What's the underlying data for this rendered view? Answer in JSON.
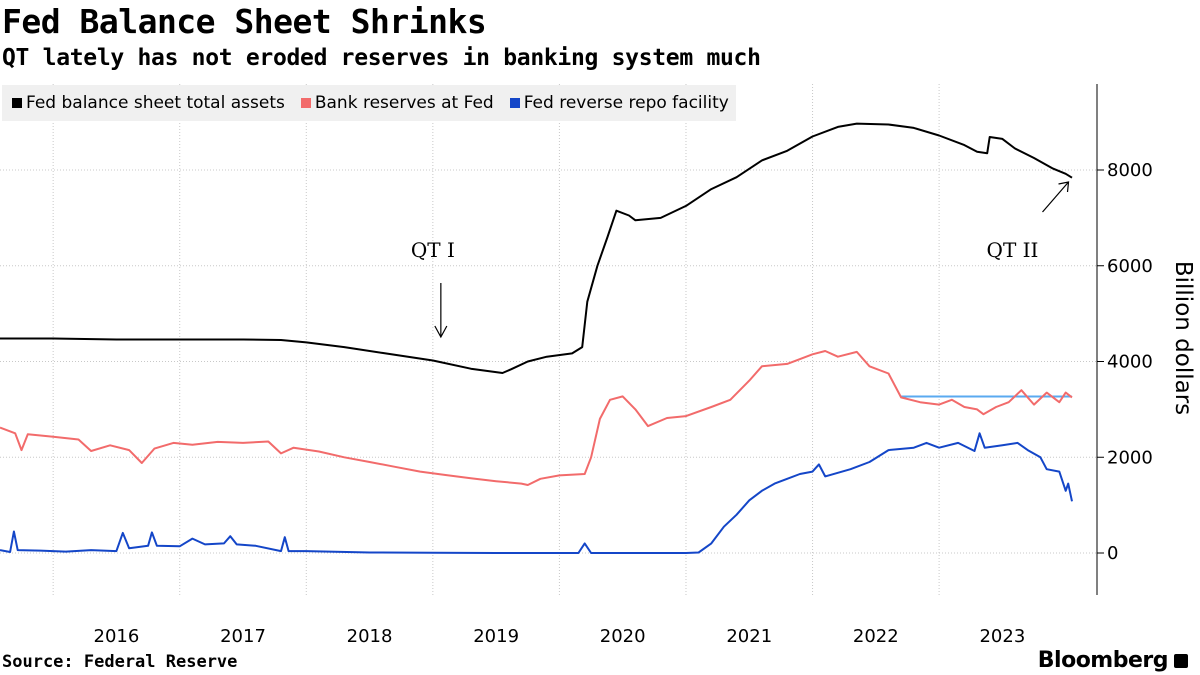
{
  "header": {
    "title": "Fed Balance Sheet Shrinks",
    "subtitle": "QT lately has not eroded reserves in banking system much"
  },
  "footer": {
    "source": "Source: Federal Reserve",
    "brand": "Bloomberg"
  },
  "colors": {
    "total_assets": "#000000",
    "reserves": "#f26b6b",
    "reverse_repo": "#1446c8",
    "reference_line": "#5aaaf0"
  },
  "chart_data": {
    "type": "line",
    "title": "Fed Balance Sheet Shrinks",
    "subtitle": "QT lately has not eroded reserves in banking system much",
    "ylabel": "Billion dollars",
    "xlabel": "",
    "ylim": [
      -900,
      9800
    ],
    "xlim": [
      2015.58,
      2023.9
    ],
    "yticks": [
      0,
      2000,
      4000,
      6000,
      8000
    ],
    "xticks": [
      "2016",
      "2017",
      "2018",
      "2019",
      "2020",
      "2021",
      "2022",
      "2023"
    ],
    "grid": true,
    "legend_position": "top-left",
    "series": [
      {
        "name": "Fed balance sheet total assets",
        "color": "#000000",
        "points": [
          [
            2015.58,
            4480
          ],
          [
            2016.0,
            4480
          ],
          [
            2016.5,
            4460
          ],
          [
            2017.0,
            4460
          ],
          [
            2017.5,
            4460
          ],
          [
            2017.8,
            4450
          ],
          [
            2018.0,
            4400
          ],
          [
            2018.3,
            4300
          ],
          [
            2018.6,
            4180
          ],
          [
            2019.0,
            4020
          ],
          [
            2019.3,
            3850
          ],
          [
            2019.55,
            3760
          ],
          [
            2019.62,
            3840
          ],
          [
            2019.75,
            4000
          ],
          [
            2019.9,
            4100
          ],
          [
            2020.1,
            4170
          ],
          [
            2020.18,
            4300
          ],
          [
            2020.22,
            5250
          ],
          [
            2020.3,
            6000
          ],
          [
            2020.38,
            6600
          ],
          [
            2020.45,
            7150
          ],
          [
            2020.55,
            7050
          ],
          [
            2020.6,
            6950
          ],
          [
            2020.8,
            7000
          ],
          [
            2021.0,
            7250
          ],
          [
            2021.2,
            7600
          ],
          [
            2021.4,
            7850
          ],
          [
            2021.6,
            8200
          ],
          [
            2021.8,
            8400
          ],
          [
            2022.0,
            8700
          ],
          [
            2022.2,
            8900
          ],
          [
            2022.35,
            8970
          ],
          [
            2022.6,
            8950
          ],
          [
            2022.8,
            8880
          ],
          [
            2023.0,
            8720
          ],
          [
            2023.2,
            8520
          ],
          [
            2023.3,
            8380
          ],
          [
            2023.38,
            8350
          ],
          [
            2023.4,
            8690
          ],
          [
            2023.5,
            8650
          ],
          [
            2023.6,
            8450
          ],
          [
            2023.75,
            8250
          ],
          [
            2023.9,
            8030
          ],
          [
            2024.0,
            7920
          ],
          [
            2024.05,
            7840
          ]
        ]
      },
      {
        "name": "Bank reserves at Fed",
        "color": "#f26b6b",
        "points": [
          [
            2015.58,
            2620
          ],
          [
            2015.7,
            2500
          ],
          [
            2015.75,
            2150
          ],
          [
            2015.8,
            2480
          ],
          [
            2016.0,
            2430
          ],
          [
            2016.2,
            2370
          ],
          [
            2016.3,
            2130
          ],
          [
            2016.45,
            2250
          ],
          [
            2016.6,
            2150
          ],
          [
            2016.7,
            1880
          ],
          [
            2016.8,
            2180
          ],
          [
            2016.95,
            2300
          ],
          [
            2017.1,
            2260
          ],
          [
            2017.3,
            2320
          ],
          [
            2017.5,
            2300
          ],
          [
            2017.7,
            2330
          ],
          [
            2017.8,
            2080
          ],
          [
            2017.9,
            2200
          ],
          [
            2018.1,
            2120
          ],
          [
            2018.3,
            2000
          ],
          [
            2018.5,
            1900
          ],
          [
            2018.7,
            1800
          ],
          [
            2018.9,
            1700
          ],
          [
            2019.1,
            1630
          ],
          [
            2019.3,
            1560
          ],
          [
            2019.5,
            1500
          ],
          [
            2019.7,
            1450
          ],
          [
            2019.75,
            1420
          ],
          [
            2019.85,
            1550
          ],
          [
            2020.0,
            1620
          ],
          [
            2020.2,
            1650
          ],
          [
            2020.25,
            2000
          ],
          [
            2020.32,
            2800
          ],
          [
            2020.4,
            3200
          ],
          [
            2020.5,
            3270
          ],
          [
            2020.6,
            3000
          ],
          [
            2020.7,
            2650
          ],
          [
            2020.85,
            2820
          ],
          [
            2021.0,
            2860
          ],
          [
            2021.2,
            3050
          ],
          [
            2021.35,
            3200
          ],
          [
            2021.5,
            3600
          ],
          [
            2021.6,
            3900
          ],
          [
            2021.8,
            3950
          ],
          [
            2022.0,
            4150
          ],
          [
            2022.1,
            4220
          ],
          [
            2022.2,
            4100
          ],
          [
            2022.35,
            4200
          ],
          [
            2022.45,
            3900
          ],
          [
            2022.6,
            3750
          ],
          [
            2022.7,
            3250
          ],
          [
            2022.85,
            3150
          ],
          [
            2023.0,
            3100
          ],
          [
            2023.1,
            3200
          ],
          [
            2023.2,
            3050
          ],
          [
            2023.3,
            3000
          ],
          [
            2023.35,
            2900
          ],
          [
            2023.45,
            3050
          ],
          [
            2023.55,
            3150
          ],
          [
            2023.65,
            3400
          ],
          [
            2023.75,
            3100
          ],
          [
            2023.85,
            3350
          ],
          [
            2023.95,
            3150
          ],
          [
            2024.0,
            3350
          ],
          [
            2024.05,
            3250
          ]
        ]
      },
      {
        "name": "Fed reverse repo facility",
        "color": "#1446c8",
        "points": [
          [
            2015.58,
            60
          ],
          [
            2015.66,
            20
          ],
          [
            2015.69,
            450
          ],
          [
            2015.72,
            60
          ],
          [
            2015.9,
            50
          ],
          [
            2016.1,
            30
          ],
          [
            2016.3,
            60
          ],
          [
            2016.5,
            40
          ],
          [
            2016.55,
            420
          ],
          [
            2016.6,
            100
          ],
          [
            2016.75,
            150
          ],
          [
            2016.78,
            430
          ],
          [
            2016.82,
            150
          ],
          [
            2017.0,
            140
          ],
          [
            2017.1,
            300
          ],
          [
            2017.2,
            180
          ],
          [
            2017.35,
            200
          ],
          [
            2017.4,
            350
          ],
          [
            2017.45,
            180
          ],
          [
            2017.6,
            150
          ],
          [
            2017.8,
            40
          ],
          [
            2017.83,
            330
          ],
          [
            2017.86,
            40
          ],
          [
            2018.0,
            40
          ],
          [
            2018.5,
            10
          ],
          [
            2019.0,
            5
          ],
          [
            2019.5,
            0
          ],
          [
            2020.0,
            0
          ],
          [
            2020.15,
            0
          ],
          [
            2020.2,
            200
          ],
          [
            2020.25,
            0
          ],
          [
            2020.5,
            0
          ],
          [
            2021.0,
            0
          ],
          [
            2021.1,
            10
          ],
          [
            2021.2,
            200
          ],
          [
            2021.3,
            550
          ],
          [
            2021.4,
            800
          ],
          [
            2021.5,
            1100
          ],
          [
            2021.6,
            1300
          ],
          [
            2021.7,
            1450
          ],
          [
            2021.8,
            1550
          ],
          [
            2021.9,
            1650
          ],
          [
            2022.0,
            1700
          ],
          [
            2022.05,
            1850
          ],
          [
            2022.1,
            1600
          ],
          [
            2022.3,
            1750
          ],
          [
            2022.45,
            1900
          ],
          [
            2022.6,
            2150
          ],
          [
            2022.8,
            2200
          ],
          [
            2022.9,
            2300
          ],
          [
            2023.0,
            2200
          ],
          [
            2023.15,
            2300
          ],
          [
            2023.28,
            2130
          ],
          [
            2023.32,
            2500
          ],
          [
            2023.36,
            2200
          ],
          [
            2023.5,
            2250
          ],
          [
            2023.62,
            2300
          ],
          [
            2023.7,
            2150
          ],
          [
            2023.8,
            2000
          ],
          [
            2023.85,
            1750
          ],
          [
            2023.95,
            1700
          ],
          [
            2024.0,
            1300
          ],
          [
            2024.02,
            1450
          ],
          [
            2024.05,
            1080
          ]
        ]
      }
    ],
    "reference_line": {
      "value": 3270,
      "x_start": 2022.7,
      "x_end": 2024.05
    },
    "annotations": [
      {
        "label": "QT I",
        "x": 2019.0,
        "arrow_to_y": 4150,
        "arrow_direction": "down"
      },
      {
        "label": "QT II",
        "x": 2023.58,
        "arrow_to_y": 7950,
        "arrow_direction": "up-right"
      }
    ]
  }
}
